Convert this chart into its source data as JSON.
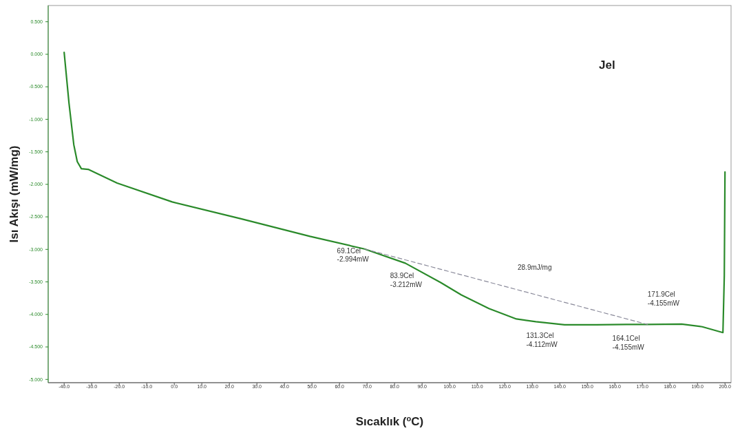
{
  "chart_data": {
    "type": "line",
    "title": "Jel",
    "xlabel": "Sıcaklık ($^{o}$C)",
    "ylabel": "Isı Akışı (mW/mg)",
    "xlim": [
      -45.8,
      202.2
    ],
    "ylim": [
      -5.05,
      0.75
    ],
    "xticks": [
      {
        "value": -40,
        "label": "-40.0"
      },
      {
        "value": -30,
        "label": "-30.0"
      },
      {
        "value": -20,
        "label": "-20.0"
      },
      {
        "value": -10,
        "label": "-10.0"
      },
      {
        "value": 0,
        "label": "0.0"
      },
      {
        "value": 10,
        "label": "10.0"
      },
      {
        "value": 20,
        "label": "20.0"
      },
      {
        "value": 30,
        "label": "30.0"
      },
      {
        "value": 40,
        "label": "40.0"
      },
      {
        "value": 50,
        "label": "50.0"
      },
      {
        "value": 60,
        "label": "60.0"
      },
      {
        "value": 70,
        "label": "70.0"
      },
      {
        "value": 80,
        "label": "80.0"
      },
      {
        "value": 90,
        "label": "90.0"
      },
      {
        "value": 100,
        "label": "100.0"
      },
      {
        "value": 110,
        "label": "110.0"
      },
      {
        "value": 120,
        "label": "120.0"
      },
      {
        "value": 130,
        "label": "130.0"
      },
      {
        "value": 140,
        "label": "140.0"
      },
      {
        "value": 150,
        "label": "150.0"
      },
      {
        "value": 160,
        "label": "160.0"
      },
      {
        "value": 170,
        "label": "170.0"
      },
      {
        "value": 180,
        "label": "180.0"
      },
      {
        "value": 190,
        "label": "190.0"
      },
      {
        "value": 200,
        "label": "200.0"
      }
    ],
    "yticks": [
      {
        "value": 0.5,
        "label": "0.500"
      },
      {
        "value": 0,
        "label": "0.000"
      },
      {
        "value": -0.5,
        "label": "-0.500"
      },
      {
        "value": -1,
        "label": "-1.000"
      },
      {
        "value": -1.5,
        "label": "-1.500"
      },
      {
        "value": -2,
        "label": "-2.000"
      },
      {
        "value": -2.5,
        "label": "-2.500"
      },
      {
        "value": -3,
        "label": "-3.000"
      },
      {
        "value": -3.5,
        "label": "-3.500"
      },
      {
        "value": -4,
        "label": "-4.000"
      },
      {
        "value": -4.5,
        "label": "-4.500"
      },
      {
        "value": -5,
        "label": "-5.000"
      }
    ],
    "grid": false,
    "marker": "none",
    "series": [
      {
        "color": "#2a8a2a",
        "line_style": "solid",
        "x": [
          -40,
          -38.25,
          -36.5,
          -35.25,
          -33.75,
          -31.25,
          -28.25,
          -20.75,
          -0.75,
          24.25,
          49.25,
          69.1,
          83.9,
          96.75,
          104.25,
          114.25,
          124.25,
          131.3,
          141.75,
          153.25,
          164.1,
          171.9,
          184.25,
          191.75,
          199.25,
          199.75,
          200
        ],
        "values": [
          0.03,
          -0.75,
          -1.39,
          -1.65,
          -1.76,
          -1.77,
          -1.83,
          -1.98,
          -2.27,
          -2.53,
          -2.8,
          -2.994,
          -3.212,
          -3.51,
          -3.7,
          -3.91,
          -4.07,
          -4.112,
          -4.16,
          -4.16,
          -4.155,
          -4.155,
          -4.15,
          -4.19,
          -4.28,
          -3.4,
          -1.81
        ]
      },
      {
        "color": "#8a8a9a",
        "line_style": "dashed",
        "x": [
          69.1,
          171.9
        ],
        "values": [
          -2.994,
          -4.155
        ]
      }
    ],
    "annotations": [
      {
        "text": "69.1Cel\n-2.994mW",
        "x": 69.1,
        "y": -2.994
      },
      {
        "text": "83.9Cel\n-3.212mW",
        "x": 83.9,
        "y": -3.212
      },
      {
        "text": "131.3Cel\n-4.112mW",
        "x": 131.3,
        "y": -4.112
      },
      {
        "text": "164.1Cel\n-4.155mW",
        "x": 164.1,
        "y": -4.155
      },
      {
        "text": "171.9Cel\n-4.155mW",
        "x": 171.9,
        "y": -4.155
      },
      "28.9mJ/mg"
    ]
  }
}
